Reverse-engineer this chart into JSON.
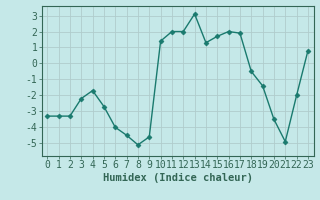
{
  "x": [
    0,
    1,
    2,
    3,
    4,
    5,
    6,
    7,
    8,
    9,
    10,
    11,
    12,
    13,
    14,
    15,
    16,
    17,
    18,
    19,
    20,
    21,
    22,
    23
  ],
  "y": [
    -3.3,
    -3.3,
    -3.3,
    -2.2,
    -1.7,
    -2.7,
    -4.0,
    -4.5,
    -5.1,
    -4.6,
    1.4,
    2.0,
    2.0,
    3.1,
    1.3,
    1.7,
    2.0,
    1.9,
    -0.5,
    -1.4,
    -3.5,
    -4.9,
    -2.0,
    0.8
  ],
  "line_color": "#1a7a6e",
  "marker": "D",
  "marker_size": 2.5,
  "background_color": "#c5e8e8",
  "grid_color": "#b0cccc",
  "xlabel": "Humidex (Indice chaleur)",
  "ylim": [
    -5.8,
    3.6
  ],
  "xlim": [
    -0.5,
    23.5
  ],
  "yticks": [
    -5,
    -4,
    -3,
    -2,
    -1,
    0,
    1,
    2,
    3
  ],
  "xticks": [
    0,
    1,
    2,
    3,
    4,
    5,
    6,
    7,
    8,
    9,
    10,
    11,
    12,
    13,
    14,
    15,
    16,
    17,
    18,
    19,
    20,
    21,
    22,
    23
  ],
  "xlabel_fontsize": 7.5,
  "tick_fontsize": 7,
  "line_width": 1.0,
  "spine_color": "#336655"
}
